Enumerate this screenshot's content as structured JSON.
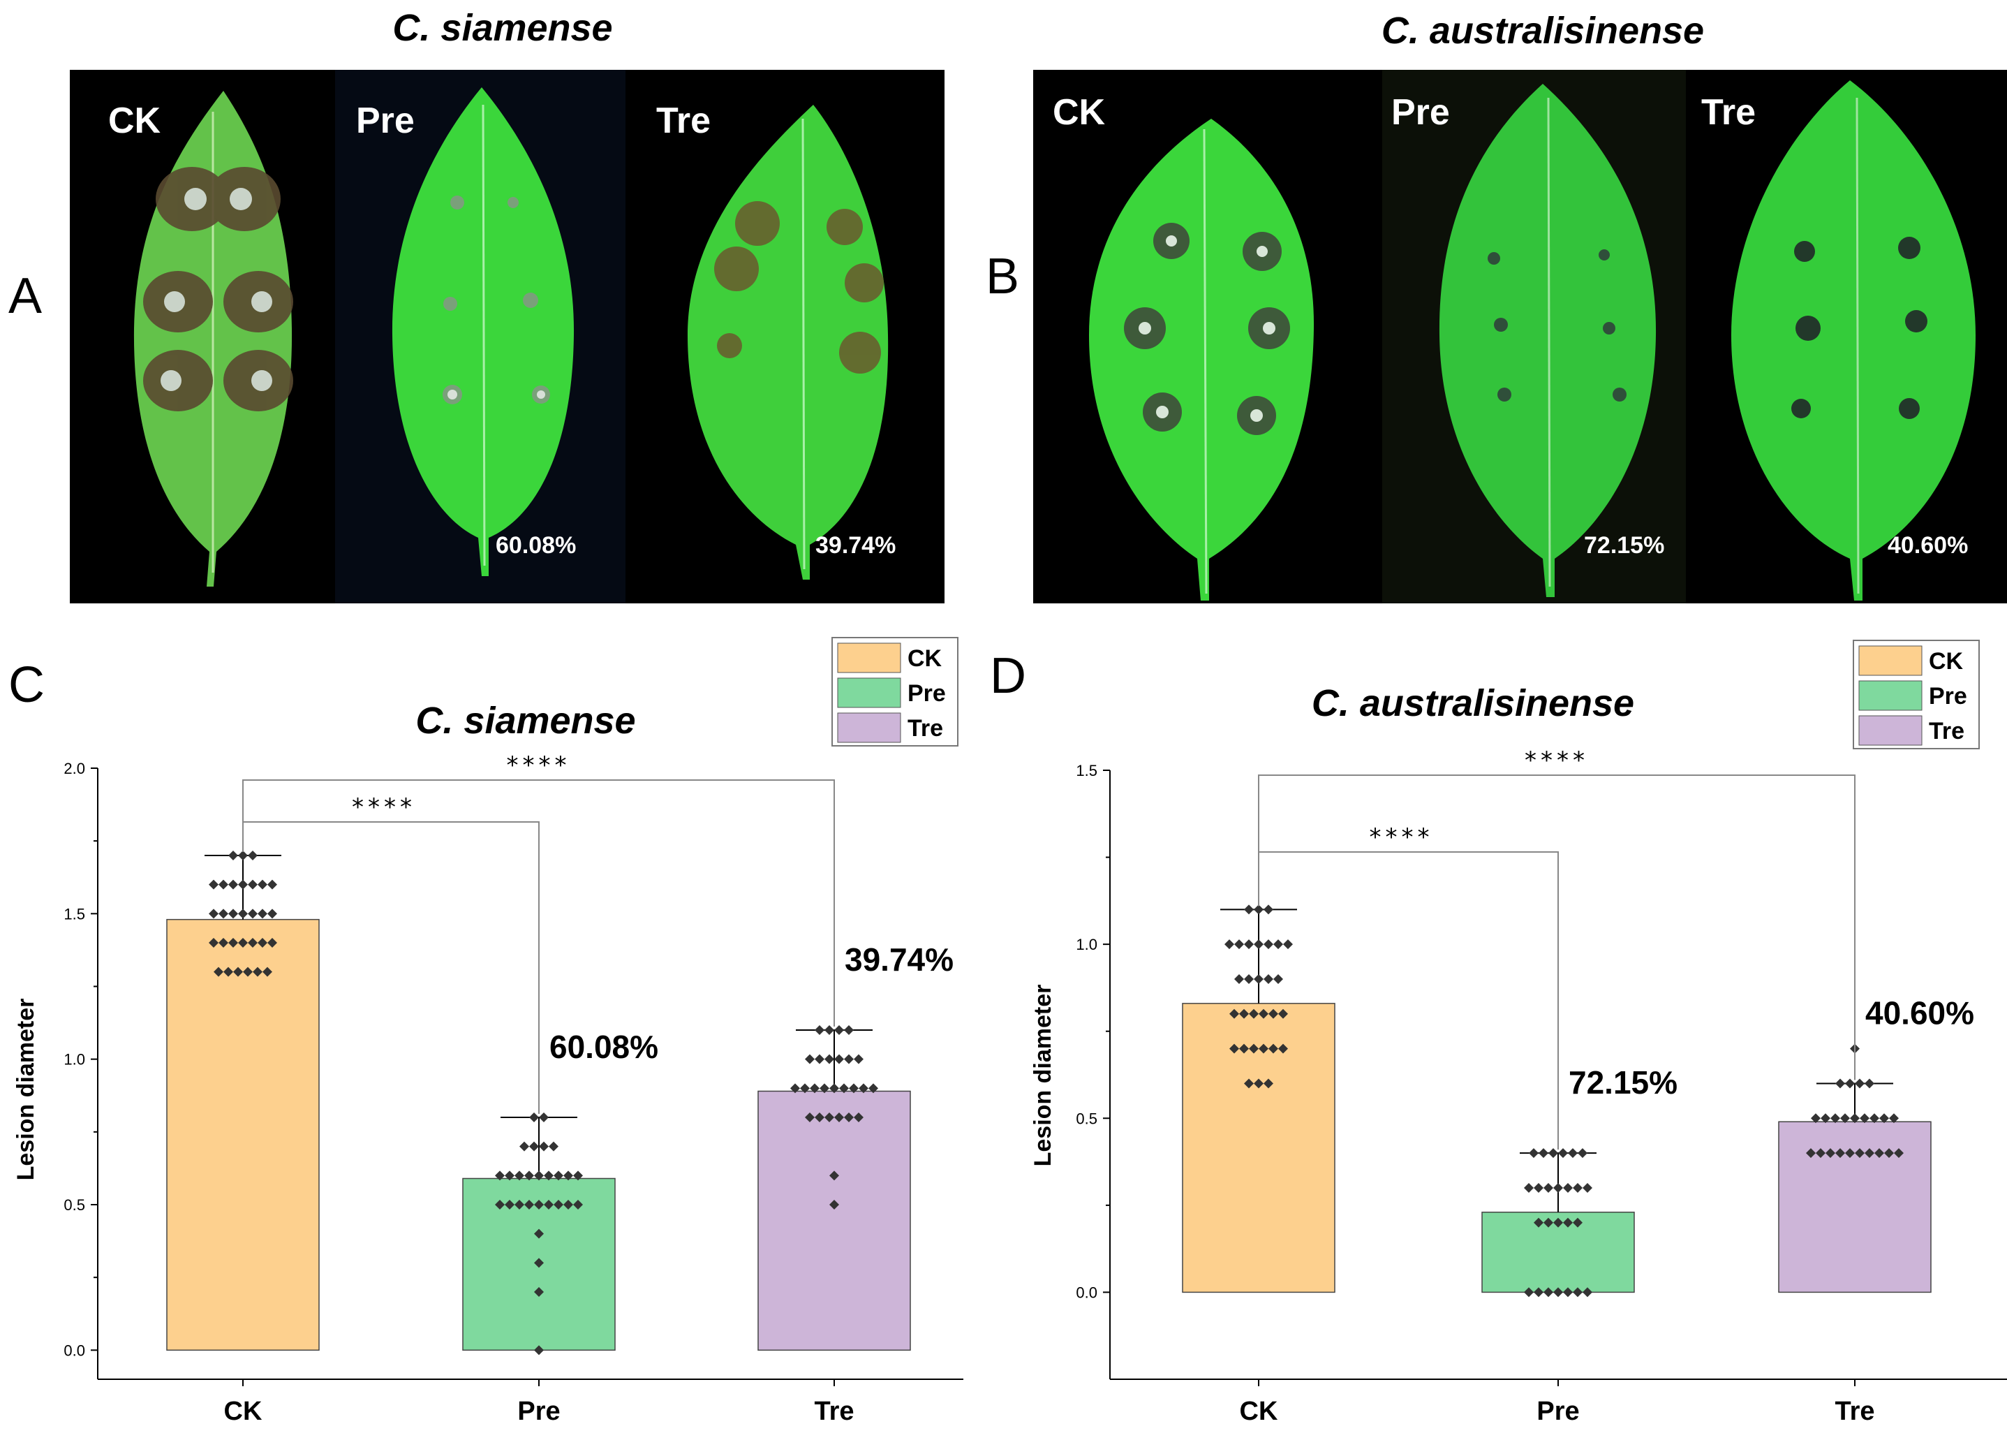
{
  "panels": {
    "A": {
      "letter": "A",
      "title": "C. siamense",
      "labels": [
        "CK",
        "Pre",
        "Tre"
      ],
      "percents": [
        "",
        "60.08%",
        "39.74%"
      ]
    },
    "B": {
      "letter": "B",
      "title": "C. australisinense",
      "labels": [
        "CK",
        "Pre",
        "Tre"
      ],
      "percents": [
        "",
        "72.15%",
        "40.60%"
      ]
    },
    "C": {
      "letter": "C"
    },
    "D": {
      "letter": "D"
    }
  },
  "colors": {
    "CK": "#FDD08E",
    "Pre": "#7FD99E",
    "Tre": "#CDB5D8",
    "dot": "#333333",
    "photo_bg": "#000000",
    "leaf": "#3bd63b",
    "leaf_dull": "#63c24a",
    "lesion": "#5a4a30"
  },
  "chart_data": [
    {
      "type": "bar",
      "title": "C. siamense",
      "xlabel": "",
      "ylabel": "Lesion diameter",
      "categories": [
        "CK",
        "Pre",
        "Tre"
      ],
      "values": [
        1.48,
        0.59,
        0.89
      ],
      "error_upper": [
        1.7,
        0.8,
        1.1
      ],
      "ylim": [
        -0.1,
        2.0
      ],
      "yticks": [
        0.0,
        0.5,
        1.0,
        1.5,
        2.0
      ],
      "ytick_labels": [
        "0.0",
        "0.5",
        "1.0",
        "1.5",
        "2.0"
      ],
      "bar_annotations": [
        "",
        "60.08%",
        "39.74%"
      ],
      "legend": [
        "CK",
        "Pre",
        "Tre"
      ],
      "legend_position": "top-right",
      "significance": [
        {
          "from": "CK",
          "to": "Pre",
          "label": "****",
          "level": 1.86
        },
        {
          "from": "CK",
          "to": "Tre",
          "label": "****",
          "level": 2.0
        }
      ],
      "points": [
        [
          1.7,
          1.7,
          1.7,
          1.6,
          1.6,
          1.6,
          1.6,
          1.6,
          1.6,
          1.6,
          1.5,
          1.5,
          1.5,
          1.5,
          1.5,
          1.5,
          1.5,
          1.4,
          1.4,
          1.4,
          1.4,
          1.4,
          1.4,
          1.4,
          1.3,
          1.3,
          1.3,
          1.3,
          1.3,
          1.3
        ],
        [
          0.8,
          0.8,
          0.7,
          0.7,
          0.7,
          0.7,
          0.6,
          0.6,
          0.6,
          0.6,
          0.6,
          0.6,
          0.6,
          0.6,
          0.6,
          0.5,
          0.5,
          0.5,
          0.5,
          0.5,
          0.5,
          0.5,
          0.5,
          0.5,
          0.4,
          0.3,
          0.2,
          0.0
        ],
        [
          1.1,
          1.1,
          1.1,
          1.1,
          1.0,
          1.0,
          1.0,
          1.0,
          1.0,
          1.0,
          0.9,
          0.9,
          0.9,
          0.9,
          0.9,
          0.9,
          0.9,
          0.9,
          0.9,
          0.8,
          0.8,
          0.8,
          0.8,
          0.8,
          0.8,
          0.6,
          0.5
        ]
      ]
    },
    {
      "type": "bar",
      "title": "C. australisinense",
      "xlabel": "",
      "ylabel": "Lesion diameter",
      "categories": [
        "CK",
        "Pre",
        "Tre"
      ],
      "values": [
        0.83,
        0.23,
        0.49
      ],
      "error_upper": [
        1.1,
        0.4,
        0.6
      ],
      "ylim": [
        -0.25,
        1.5
      ],
      "yticks": [
        0.0,
        0.5,
        1.0,
        1.5
      ],
      "ytick_labels": [
        "0.0",
        "0.5",
        "1.0",
        "1.5"
      ],
      "bar_annotations": [
        "",
        "72.15%",
        "40.60%"
      ],
      "legend": [
        "CK",
        "Pre",
        "Tre"
      ],
      "legend_position": "top-right",
      "significance": [
        {
          "from": "CK",
          "to": "Pre",
          "label": "****",
          "level": 1.26
        },
        {
          "from": "CK",
          "to": "Tre",
          "label": "****",
          "level": 1.5
        }
      ],
      "points": [
        [
          1.1,
          1.1,
          1.1,
          1.0,
          1.0,
          1.0,
          1.0,
          1.0,
          1.0,
          1.0,
          0.9,
          0.9,
          0.9,
          0.9,
          0.9,
          0.8,
          0.8,
          0.8,
          0.8,
          0.8,
          0.8,
          0.7,
          0.7,
          0.7,
          0.7,
          0.7,
          0.7,
          0.6,
          0.6,
          0.6
        ],
        [
          0.4,
          0.4,
          0.4,
          0.4,
          0.4,
          0.4,
          0.3,
          0.3,
          0.3,
          0.3,
          0.3,
          0.3,
          0.3,
          0.2,
          0.2,
          0.2,
          0.2,
          0.2,
          0.0,
          0.0,
          0.0,
          0.0,
          0.0,
          0.0,
          0.0
        ],
        [
          0.7,
          0.6,
          0.6,
          0.6,
          0.6,
          0.5,
          0.5,
          0.5,
          0.5,
          0.5,
          0.5,
          0.5,
          0.5,
          0.5,
          0.4,
          0.4,
          0.4,
          0.4,
          0.4,
          0.4,
          0.4,
          0.4,
          0.4,
          0.4
        ]
      ]
    }
  ]
}
